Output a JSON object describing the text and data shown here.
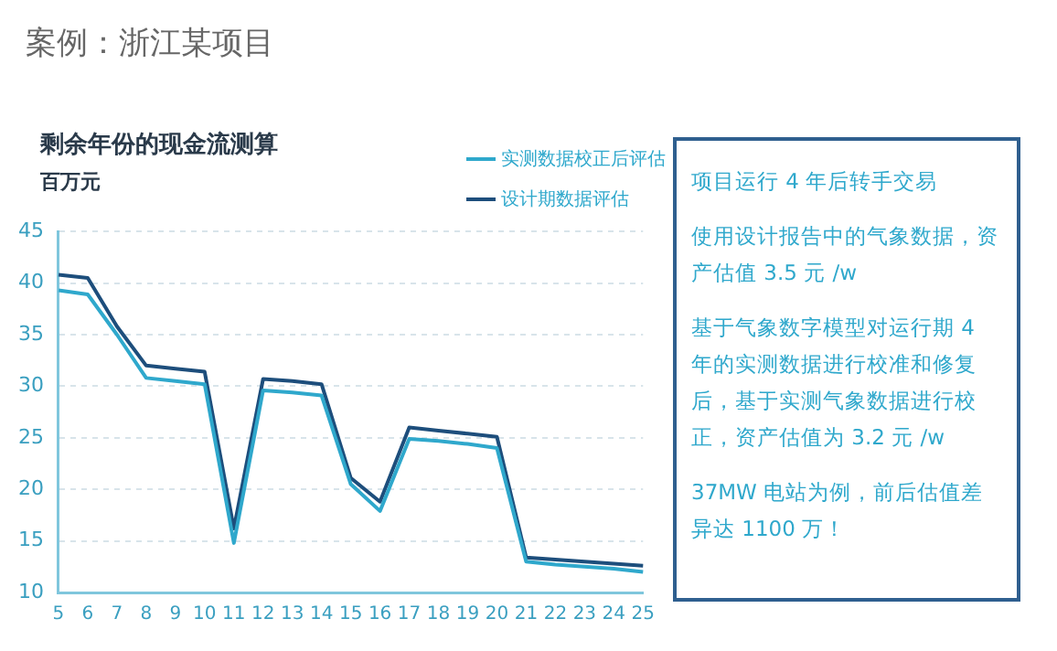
{
  "chart_data": [
    {
      "type": "line",
      "title": "剩余年份的现金流测算",
      "ylabel": "百万元",
      "categories": [
        "5",
        "6",
        "7",
        "8",
        "9",
        "10",
        "11",
        "12",
        "13",
        "14",
        "15",
        "16",
        "17",
        "18",
        "19",
        "20",
        "21",
        "22",
        "23",
        "24",
        "25"
      ],
      "series": [
        {
          "name": "实测数据校正后评估",
          "color": "#2fa8cc",
          "values": [
            39.3,
            38.9,
            35.0,
            30.8,
            30.5,
            30.2,
            14.8,
            29.6,
            29.4,
            29.1,
            20.5,
            17.9,
            24.9,
            24.7,
            24.4,
            24.0,
            13.0,
            12.7,
            12.5,
            12.3,
            12.0
          ]
        },
        {
          "name": "设计期数据评估",
          "color": "#1d4e7c",
          "values": [
            40.8,
            40.5,
            35.8,
            32.0,
            31.7,
            31.4,
            16.2,
            30.7,
            30.5,
            30.2,
            21.1,
            18.8,
            26.0,
            25.7,
            25.4,
            25.1,
            13.4,
            13.2,
            13.0,
            12.8,
            12.6
          ]
        }
      ],
      "ylim": [
        10,
        45
      ],
      "yticks": [
        10,
        15,
        20,
        25,
        30,
        35,
        40,
        45
      ],
      "grid": "y",
      "legend": "top right",
      "marker": "none",
      "line_style": "solid"
    },
    {
      "type": "other",
      "title": "案例：浙江某项目",
      "annotations": [
        "项目运行 4 年后转手交易",
        "使用设计报告中的气象数据，资产估值 3.5 元 /w",
        "基于气象数字模型对运行期 4 年的实测数据进行校准和修复后，基于实测气象数据进行校正，资产估值为 3.2 元 /w",
        "37MW 电站为例，前后估值差异达 1100 万！"
      ]
    }
  ]
}
